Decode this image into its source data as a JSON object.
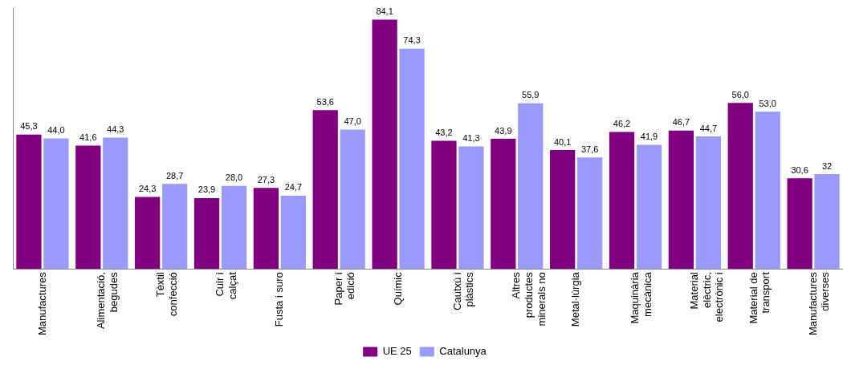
{
  "chart_data": {
    "type": "bar",
    "categories": [
      "Manufactures",
      "Alimentació, begudes",
      "Tèxtil confecció",
      "Cuir i calçat",
      "Fusta i suro",
      "Paper i edició",
      "Químic",
      "Cautxú i plàstics",
      "Altres productes minerals no",
      "Metal·lúrgia",
      "Maquinària mecànica",
      "Material elèctric, electrònic i",
      "Material de transport",
      "Manufactures diverses"
    ],
    "series": [
      {
        "name": "UE 25",
        "color": "#800080",
        "values": [
          45.3,
          41.6,
          24.3,
          23.9,
          27.3,
          53.6,
          84.1,
          43.2,
          43.9,
          40.1,
          46.2,
          46.7,
          56.0,
          30.6
        ],
        "value_labels": [
          "45,3",
          "41,6",
          "24,3",
          "23,9",
          "27,3",
          "53,6",
          "84,1",
          "43,2",
          "43,9",
          "40,1",
          "46,2",
          "46,7",
          "56,0",
          "30,6"
        ]
      },
      {
        "name": "Catalunya",
        "color": "#9999ff",
        "values": [
          44.0,
          44.3,
          28.7,
          28.0,
          24.7,
          47.0,
          74.3,
          41.3,
          55.9,
          37.6,
          41.9,
          44.7,
          53.0,
          32
        ],
        "value_labels": [
          "44,0",
          "44,3",
          "28,7",
          "28,0",
          "24,7",
          "47,0",
          "74,3",
          "41,3",
          "55,9",
          "37,6",
          "41,9",
          "44,7",
          "53,0",
          "32"
        ]
      }
    ],
    "ylim": [
      0,
      88
    ],
    "tick_labels": "x",
    "grid": false,
    "legend": "bottom"
  }
}
